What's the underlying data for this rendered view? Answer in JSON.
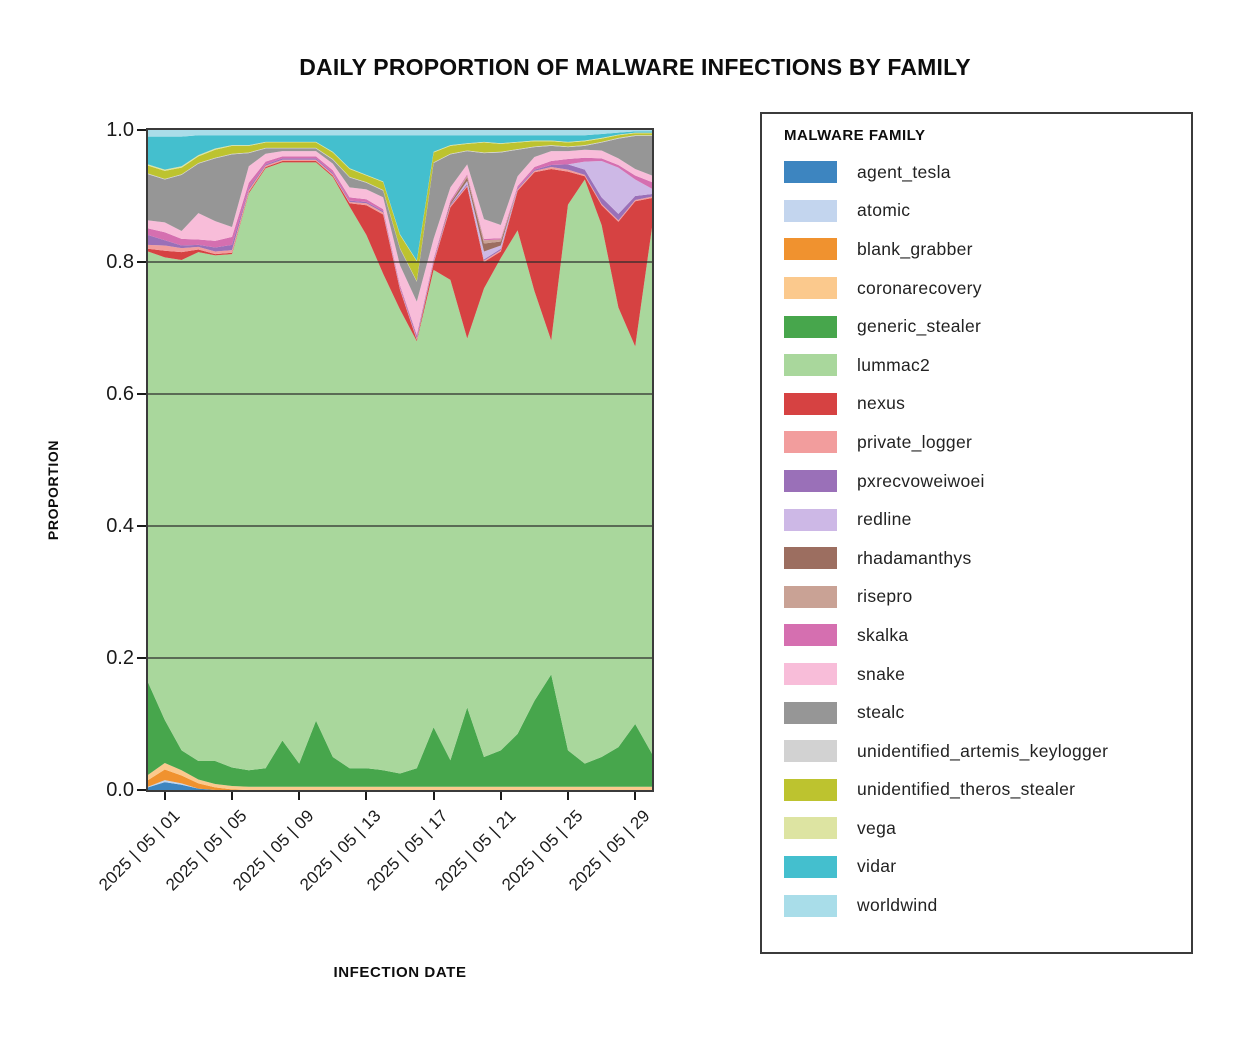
{
  "title": "DAILY PROPORTION OF MALWARE INFECTIONS BY FAMILY",
  "x_axis": {
    "label": "INFECTION DATE"
  },
  "y_axis": {
    "label": "PROPORTION",
    "ticks": [
      {
        "value": 1.0,
        "label": "1.0"
      },
      {
        "value": 0.8,
        "label": "0.8"
      },
      {
        "value": 0.6,
        "label": "0.6"
      },
      {
        "value": 0.4,
        "label": "0.4"
      },
      {
        "value": 0.2,
        "label": "0.2"
      },
      {
        "value": 0.0,
        "label": "0.0"
      }
    ]
  },
  "legend": {
    "title": "MALWARE FAMILY"
  },
  "chart_data": {
    "type": "area",
    "stacked": true,
    "normalized": true,
    "title": "DAILY PROPORTION OF MALWARE INFECTIONS BY FAMILY",
    "xlabel": "INFECTION DATE",
    "ylabel": "PROPORTION",
    "ylim": [
      0,
      1
    ],
    "grid_y": [
      0.2,
      0.4,
      0.6,
      0.8
    ],
    "grid_color": "#2b2b2b",
    "spine_color": "#3b3b3b",
    "legend_position": "right",
    "x": [
      "2025-04-30",
      "2025-05-01",
      "2025-05-02",
      "2025-05-03",
      "2025-05-04",
      "2025-05-05",
      "2025-05-06",
      "2025-05-07",
      "2025-05-08",
      "2025-05-09",
      "2025-05-10",
      "2025-05-11",
      "2025-05-12",
      "2025-05-13",
      "2025-05-14",
      "2025-05-15",
      "2025-05-16",
      "2025-05-17",
      "2025-05-18",
      "2025-05-19",
      "2025-05-20",
      "2025-05-21",
      "2025-05-22",
      "2025-05-23",
      "2025-05-24",
      "2025-05-25",
      "2025-05-26",
      "2025-05-27",
      "2025-05-28",
      "2025-05-29",
      "2025-05-30"
    ],
    "x_ticks": [
      {
        "index": 1,
        "label": "2025 | 05 | 01"
      },
      {
        "index": 5,
        "label": "2025 | 05 | 05"
      },
      {
        "index": 9,
        "label": "2025 | 05 | 09"
      },
      {
        "index": 13,
        "label": "2025 | 05 | 13"
      },
      {
        "index": 17,
        "label": "2025 | 05 | 17"
      },
      {
        "index": 21,
        "label": "2025 | 05 | 21"
      },
      {
        "index": 25,
        "label": "2025 | 05 | 25"
      },
      {
        "index": 29,
        "label": "2025 | 05 | 29"
      }
    ],
    "series": [
      {
        "name": "agent_tesla",
        "color": "#3d85c0",
        "values": [
          0.004,
          0.012,
          0.008,
          0.002,
          0,
          0,
          0,
          0,
          0,
          0,
          0,
          0,
          0,
          0,
          0,
          0,
          0,
          0,
          0,
          0,
          0,
          0,
          0,
          0,
          0,
          0,
          0,
          0,
          0,
          0,
          0
        ]
      },
      {
        "name": "atomic",
        "color": "#c3d5ee",
        "values": [
          0.001,
          0.003,
          0.002,
          0,
          0,
          0,
          0,
          0,
          0,
          0,
          0,
          0,
          0,
          0,
          0,
          0,
          0,
          0,
          0,
          0,
          0,
          0,
          0,
          0,
          0,
          0,
          0,
          0,
          0,
          0,
          0
        ]
      },
      {
        "name": "blank_grabber",
        "color": "#f0922f",
        "values": [
          0.01,
          0.016,
          0.012,
          0.008,
          0.004,
          0.001,
          0,
          0,
          0,
          0,
          0,
          0,
          0,
          0,
          0,
          0,
          0,
          0,
          0,
          0,
          0,
          0,
          0,
          0,
          0,
          0,
          0,
          0,
          0,
          0,
          0
        ]
      },
      {
        "name": "coronarecovery",
        "color": "#fbc98d",
        "values": [
          0.008,
          0.01,
          0.008,
          0.006,
          0.005,
          0.005,
          0.005,
          0.005,
          0.005,
          0.005,
          0.005,
          0.005,
          0.005,
          0.005,
          0.005,
          0.005,
          0.005,
          0.005,
          0.005,
          0.005,
          0.005,
          0.005,
          0.005,
          0.005,
          0.005,
          0.005,
          0.005,
          0.005,
          0.005,
          0.005,
          0.005
        ]
      },
      {
        "name": "generic_stealer",
        "color": "#47a64c",
        "values": [
          0.14,
          0.065,
          0.03,
          0.028,
          0.035,
          0.028,
          0.025,
          0.028,
          0.07,
          0.035,
          0.1,
          0.045,
          0.028,
          0.028,
          0.025,
          0.02,
          0.028,
          0.09,
          0.04,
          0.12,
          0.045,
          0.055,
          0.08,
          0.13,
          0.17,
          0.055,
          0.035,
          0.045,
          0.06,
          0.095,
          0.05
        ]
      },
      {
        "name": "lummac2",
        "color": "#a9d79c",
        "values": [
          0.653,
          0.701,
          0.743,
          0.771,
          0.766,
          0.778,
          0.874,
          0.909,
          0.876,
          0.911,
          0.846,
          0.879,
          0.851,
          0.808,
          0.752,
          0.703,
          0.647,
          0.693,
          0.728,
          0.559,
          0.71,
          0.746,
          0.763,
          0.621,
          0.506,
          0.827,
          0.885,
          0.806,
          0.666,
          0.572,
          0.797
        ]
      },
      {
        "name": "nexus",
        "color": "#d64242",
        "values": [
          0.004,
          0.01,
          0.012,
          0.004,
          0.002,
          0.002,
          0.002,
          0.002,
          0.002,
          0.002,
          0.002,
          0.002,
          0.005,
          0.045,
          0.09,
          0.03,
          0.002,
          0.01,
          0.11,
          0.23,
          0.04,
          0.01,
          0.06,
          0.18,
          0.26,
          0.05,
          0.005,
          0.03,
          0.13,
          0.22,
          0.045
        ]
      },
      {
        "name": "private_logger",
        "color": "#f29d9d",
        "values": [
          0.006,
          0.008,
          0.006,
          0.004,
          0.004,
          0.004,
          0.003,
          0.002,
          0.002,
          0.002,
          0.002,
          0.002,
          0.002,
          0.003,
          0.003,
          0.002,
          0.002,
          0.002,
          0.002,
          0.002,
          0.002,
          0.002,
          0.002,
          0.002,
          0.003,
          0.003,
          0.002,
          0.002,
          0.002,
          0.002,
          0.002
        ]
      },
      {
        "name": "pxrecvoweiwoei",
        "color": "#9a70b8",
        "values": [
          0.015,
          0.008,
          0.004,
          0.003,
          0.006,
          0.008,
          0.003,
          0.002,
          0.002,
          0.002,
          0.002,
          0.002,
          0.002,
          0.002,
          0.002,
          0.002,
          0.004,
          0.002,
          0.002,
          0.002,
          0.002,
          0.002,
          0.002,
          0.002,
          0.003,
          0.008,
          0.008,
          0.01,
          0.01,
          0.006,
          0.004
        ]
      },
      {
        "name": "redline",
        "color": "#cdb8e6",
        "values": [
          0,
          0,
          0,
          0,
          0,
          0,
          0,
          0,
          0,
          0,
          0,
          0,
          0,
          0,
          0,
          0,
          0,
          0,
          0,
          0.005,
          0.012,
          0.005,
          0,
          0,
          0,
          0,
          0.012,
          0.055,
          0.07,
          0.025,
          0.008
        ]
      },
      {
        "name": "rhadamanthys",
        "color": "#9c6e60",
        "values": [
          0,
          0,
          0,
          0,
          0,
          0,
          0,
          0,
          0,
          0,
          0,
          0,
          0,
          0,
          0,
          0,
          0,
          0,
          0.003,
          0.005,
          0.012,
          0.006,
          0,
          0,
          0,
          0,
          0,
          0,
          0,
          0,
          0
        ]
      },
      {
        "name": "risepro",
        "color": "#c9a295",
        "values": [
          0,
          0,
          0,
          0,
          0,
          0,
          0,
          0,
          0,
          0,
          0,
          0,
          0,
          0,
          0,
          0,
          0,
          0,
          0,
          0.003,
          0.005,
          0.003,
          0,
          0,
          0,
          0,
          0,
          0,
          0,
          0,
          0
        ]
      },
      {
        "name": "skalka",
        "color": "#d56fb0",
        "values": [
          0.01,
          0.012,
          0.01,
          0.008,
          0.01,
          0.012,
          0.008,
          0.004,
          0.003,
          0.003,
          0.003,
          0.004,
          0.005,
          0.004,
          0.003,
          0.003,
          0.002,
          0.003,
          0.003,
          0.002,
          0.002,
          0.002,
          0.003,
          0.004,
          0.006,
          0.008,
          0.006,
          0.004,
          0.004,
          0.006,
          0.01
        ]
      },
      {
        "name": "snake",
        "color": "#f8bdd9",
        "values": [
          0.012,
          0.015,
          0.012,
          0.04,
          0.03,
          0.015,
          0.025,
          0.012,
          0.008,
          0.008,
          0.008,
          0.01,
          0.015,
          0.015,
          0.018,
          0.03,
          0.05,
          0.03,
          0.02,
          0.015,
          0.03,
          0.02,
          0.015,
          0.015,
          0.015,
          0.012,
          0.012,
          0.012,
          0.01,
          0.01,
          0.01
        ]
      },
      {
        "name": "stealc",
        "color": "#969696",
        "values": [
          0.07,
          0.065,
          0.085,
          0.075,
          0.095,
          0.11,
          0.02,
          0.008,
          0.004,
          0.004,
          0.004,
          0.006,
          0.015,
          0.01,
          0.01,
          0.025,
          0.03,
          0.115,
          0.05,
          0.02,
          0.1,
          0.11,
          0.04,
          0.015,
          0.008,
          0.006,
          0.006,
          0.012,
          0.03,
          0.05,
          0.06
        ]
      },
      {
        "name": "unidentified_artemis_keylogger",
        "color": "#d2d2d2",
        "values": [
          0.001,
          0.001,
          0.001,
          0.001,
          0.001,
          0.001,
          0.001,
          0.001,
          0.001,
          0.001,
          0.001,
          0.001,
          0.001,
          0.001,
          0.001,
          0.001,
          0.001,
          0.001,
          0.001,
          0.001,
          0.001,
          0.001,
          0.001,
          0.001,
          0.001,
          0.001,
          0.001,
          0.001,
          0.001,
          0.001,
          0.001
        ]
      },
      {
        "name": "unidentified_theros_stealer",
        "color": "#bdc32f",
        "values": [
          0.012,
          0.012,
          0.01,
          0.01,
          0.012,
          0.012,
          0.01,
          0.008,
          0.008,
          0.008,
          0.008,
          0.01,
          0.012,
          0.01,
          0.012,
          0.02,
          0.03,
          0.015,
          0.012,
          0.01,
          0.015,
          0.012,
          0.01,
          0.008,
          0.006,
          0.006,
          0.006,
          0.005,
          0.004,
          0.003,
          0.003
        ]
      },
      {
        "name": "vega",
        "color": "#dde4a2",
        "values": [
          0.002,
          0.002,
          0.002,
          0.002,
          0.002,
          0.001,
          0.001,
          0.001,
          0.001,
          0.001,
          0.001,
          0.001,
          0.001,
          0.001,
          0.001,
          0.001,
          0.001,
          0.001,
          0.001,
          0.001,
          0.001,
          0.001,
          0.001,
          0.001,
          0.001,
          0.001,
          0.001,
          0.001,
          0.001,
          0.001,
          0.001
        ]
      },
      {
        "name": "vidar",
        "color": "#44bfce",
        "values": [
          0.042,
          0.05,
          0.045,
          0.03,
          0.02,
          0.015,
          0.015,
          0.01,
          0.01,
          0.01,
          0.01,
          0.025,
          0.05,
          0.06,
          0.07,
          0.15,
          0.19,
          0.025,
          0.015,
          0.012,
          0.01,
          0.012,
          0.01,
          0.008,
          0.008,
          0.01,
          0.008,
          0.006,
          0.003,
          0.002,
          0.002
        ]
      },
      {
        "name": "worldwind",
        "color": "#a9dde9",
        "values": [
          0.01,
          0.01,
          0.01,
          0.008,
          0.008,
          0.008,
          0.008,
          0.008,
          0.008,
          0.008,
          0.008,
          0.008,
          0.008,
          0.008,
          0.008,
          0.008,
          0.008,
          0.008,
          0.008,
          0.008,
          0.008,
          0.008,
          0.008,
          0.008,
          0.008,
          0.008,
          0.008,
          0.006,
          0.004,
          0.002,
          0.002
        ]
      }
    ]
  }
}
